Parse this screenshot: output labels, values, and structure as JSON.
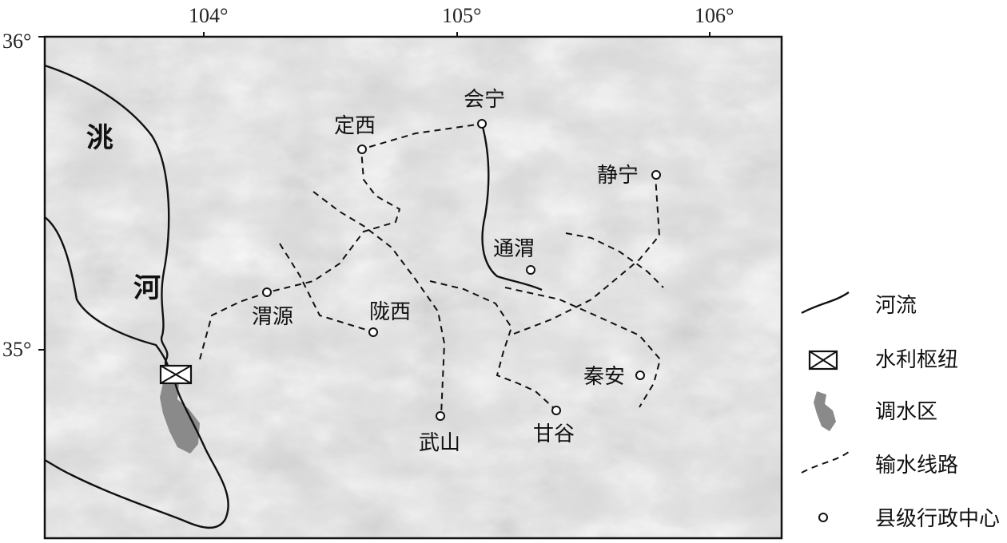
{
  "map": {
    "lon_labels": [
      "104°",
      "105°",
      "106°"
    ],
    "lat_labels": [
      "36°",
      "35°"
    ],
    "river_name": [
      "洮",
      "河"
    ],
    "towns": {
      "dingxi": "定西",
      "huining": "会宁",
      "jingning": "静宁",
      "tongwei": "通渭",
      "weiyuan": "渭源",
      "longxi": "陇西",
      "qinan": "秦安",
      "wushan": "武山",
      "gangu": "甘谷"
    }
  },
  "legend": {
    "river": "河流",
    "hub": "水利枢纽",
    "transfer_area": "调水区",
    "water_route": "输水线路",
    "county_center": "县级行政中心"
  },
  "colors": {
    "terrain_base": "#d9d9d9",
    "transfer_area": "#8a8a8a",
    "line": "#111111"
  }
}
